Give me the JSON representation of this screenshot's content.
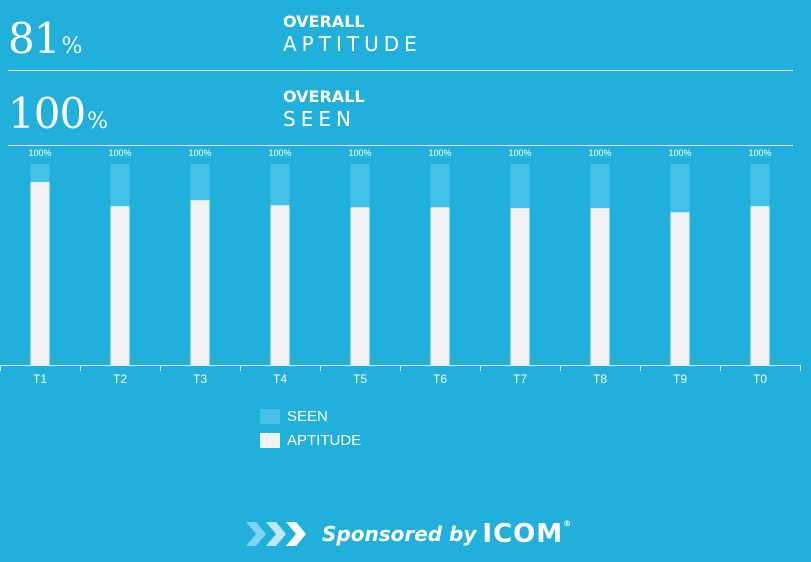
{
  "stats": [
    {
      "value": "81",
      "unit": "%",
      "label_small": "OVERALL",
      "label_large": "APTITUDE"
    },
    {
      "value": "100",
      "unit": "%",
      "label_small": "OVERALL",
      "label_large": "SEEN"
    }
  ],
  "chart_data": {
    "type": "bar",
    "categories": [
      "T1",
      "T2",
      "T3",
      "T4",
      "T5",
      "T6",
      "T7",
      "T8",
      "T9",
      "T0"
    ],
    "series": [
      {
        "name": "SEEN",
        "values": [
          100,
          100,
          100,
          100,
          100,
          100,
          100,
          100,
          100,
          100
        ],
        "color": "#46c1e8"
      },
      {
        "name": "APTITUDE",
        "values": [
          91,
          79,
          82,
          79.5,
          78.5,
          78.5,
          78,
          78,
          76,
          79
        ],
        "color": "#f2f2f2"
      }
    ],
    "data_labels": [
      "100%",
      "100%",
      "100%",
      "100%",
      "100%",
      "100%",
      "100%",
      "100%",
      "100%",
      "100%"
    ],
    "ylim": [
      0,
      100
    ],
    "overlay": true,
    "grid": false,
    "legend": "bottom-center"
  },
  "legend": [
    {
      "label": "SEEN",
      "color": "#46c1e8"
    },
    {
      "label": "APTITUDE",
      "color": "#f2f2f2"
    }
  ],
  "sponsor": {
    "text": "Sponsored by",
    "brand": "ICOM",
    "reg": "®"
  },
  "colors": {
    "background": "#21afdc",
    "axis": "#e8f6fc"
  }
}
